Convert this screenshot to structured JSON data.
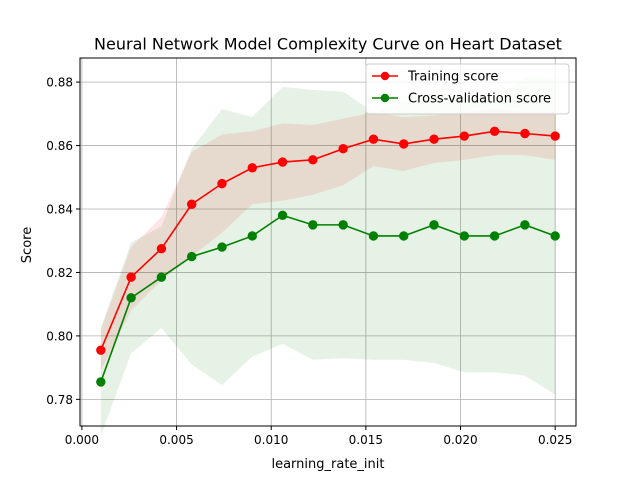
{
  "colors": {
    "training": "#ff0000",
    "cv": "#008000",
    "grid": "#b0b0b0",
    "axis": "#000000",
    "legend_border": "#cccccc"
  },
  "chart_data": {
    "type": "line",
    "title": "Neural Network Model Complexity Curve on Heart Dataset",
    "xlabel": "learning_rate_init",
    "ylabel": "Score",
    "xlim": [
      -0.0001,
      0.0261
    ],
    "ylim": [
      0.7716,
      0.8876
    ],
    "grid": true,
    "legend_placement": "top-right",
    "x": [
      0.001,
      0.0026,
      0.0042,
      0.0058,
      0.0074,
      0.009,
      0.0106,
      0.0122,
      0.0138,
      0.0154,
      0.017,
      0.0186,
      0.0202,
      0.0218,
      0.0234,
      0.025
    ],
    "xticks": [
      0.0,
      0.005,
      0.01,
      0.015,
      0.02,
      0.025
    ],
    "xtick_labels": [
      "0.000",
      "0.005",
      "0.010",
      "0.015",
      "0.020",
      "0.025"
    ],
    "yticks": [
      0.78,
      0.8,
      0.82,
      0.84,
      0.86,
      0.88
    ],
    "ytick_labels": [
      "0.78",
      "0.80",
      "0.82",
      "0.84",
      "0.86",
      "0.88"
    ],
    "series": [
      {
        "name": "Training score",
        "color": "#ff0000",
        "values": [
          0.7955,
          0.8185,
          0.8275,
          0.8415,
          0.848,
          0.853,
          0.8548,
          0.8555,
          0.859,
          0.862,
          0.8605,
          0.862,
          0.863,
          0.8645,
          0.8638,
          0.863
        ],
        "upper": [
          0.802,
          0.828,
          0.8375,
          0.858,
          0.8635,
          0.8645,
          0.867,
          0.8665,
          0.8685,
          0.8705,
          0.869,
          0.8695,
          0.8705,
          0.8715,
          0.8705,
          0.8705
        ],
        "lower": [
          0.789,
          0.808,
          0.8175,
          0.825,
          0.8325,
          0.8415,
          0.8426,
          0.8445,
          0.8475,
          0.8535,
          0.852,
          0.8545,
          0.8555,
          0.857,
          0.857,
          0.8555
        ]
      },
      {
        "name": "Cross-validation score",
        "color": "#008000",
        "values": [
          0.7855,
          0.812,
          0.8185,
          0.825,
          0.828,
          0.8315,
          0.838,
          0.835,
          0.835,
          0.8315,
          0.8315,
          0.835,
          0.8315,
          0.8315,
          0.835,
          0.8315
        ],
        "upper": [
          0.8025,
          0.8295,
          0.8345,
          0.859,
          0.8715,
          0.869,
          0.8785,
          0.8775,
          0.877,
          0.8705,
          0.874,
          0.878,
          0.8745,
          0.8745,
          0.8815,
          0.8815
        ],
        "lower": [
          0.7685,
          0.7945,
          0.8025,
          0.791,
          0.7845,
          0.7935,
          0.7975,
          0.7925,
          0.793,
          0.7925,
          0.7925,
          0.7915,
          0.7885,
          0.7885,
          0.7875,
          0.7815
        ]
      }
    ]
  }
}
